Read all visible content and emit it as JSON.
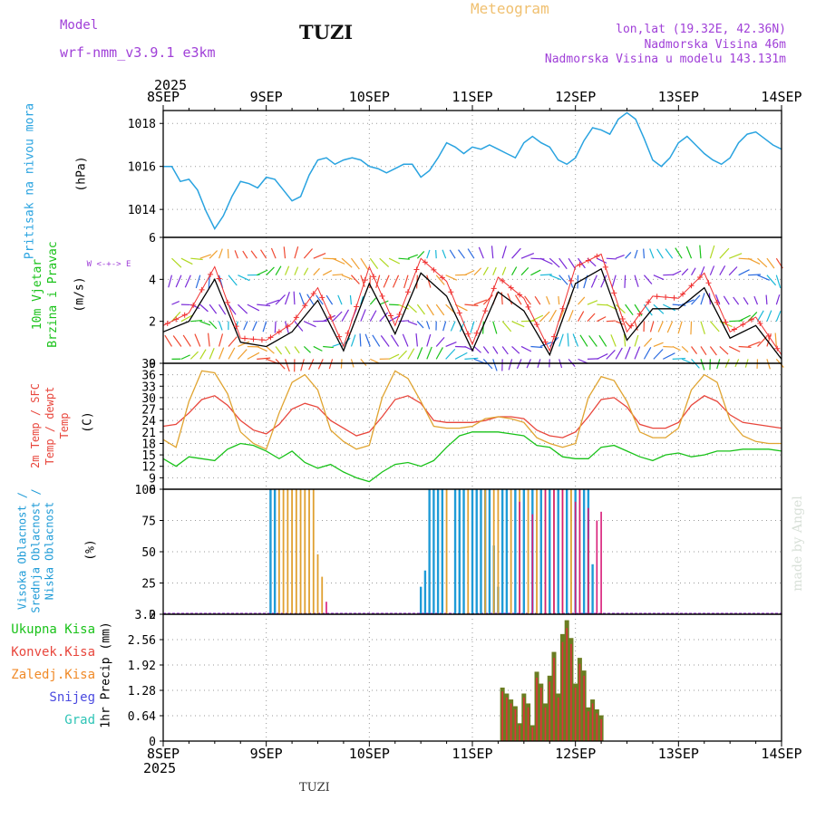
{
  "header": {
    "model_label": "Model",
    "model_name": "wrf-nmm_v3.9.1  e3km",
    "station": "TUZI",
    "title": "Meteogram",
    "coords": "lon,lat (19.32E, 42.36N)",
    "elevation": "Nadmorska Visina 46m",
    "model_elevation": "Nadmorska Visina u modelu 143.131m"
  },
  "footer": {
    "station": "TUZI",
    "credit": "made by Angel"
  },
  "colors": {
    "pressure": "#29a3e0",
    "temp2m": "#e8463c",
    "sfc_temp": "#e0a431",
    "dewpoint": "#19c219",
    "high_cloud": "#1e9bd7",
    "mid_cloud": "#e0a030",
    "low_cloud": "#d81b78",
    "precip_total": "#6b7d22",
    "precip_conv": "#e0313a",
    "wind_speed": "#000000",
    "wind_gust": "#f03030",
    "header_purple": "#a040d8",
    "header_orange": "#f0c070"
  },
  "time_axis": {
    "top_year": "2025",
    "bottom_year": "2025",
    "ticks": [
      "8SEP",
      "9SEP",
      "10SEP",
      "11SEP",
      "12SEP",
      "13SEP",
      "14SEP"
    ],
    "range_hours": [
      0,
      144
    ]
  },
  "chart_data": [
    {
      "type": "line",
      "title": "Pritisak na nivou mora",
      "ylabel": "(hPa)",
      "ylim": [
        1012.7,
        1018.6
      ],
      "yticks": [
        "1014",
        "1016",
        "1018"
      ],
      "x": [
        0,
        2,
        4,
        6,
        8,
        10,
        12,
        14,
        16,
        18,
        20,
        22,
        24,
        26,
        28,
        30,
        32,
        34,
        36,
        38,
        40,
        42,
        44,
        46,
        48,
        50,
        52,
        54,
        56,
        58,
        60,
        62,
        64,
        66,
        68,
        70,
        72,
        74,
        76,
        78,
        80,
        82,
        84,
        86,
        88,
        90,
        92,
        94,
        96,
        98,
        100,
        102,
        104,
        106,
        108,
        110,
        112,
        114,
        116,
        118,
        120,
        122,
        124,
        126,
        128,
        130,
        132,
        134,
        136,
        138,
        140,
        142,
        144
      ],
      "series": [
        {
          "name": "MSLP",
          "values": [
            1016.0,
            1016.0,
            1015.3,
            1015.4,
            1014.9,
            1013.9,
            1013.1,
            1013.7,
            1014.6,
            1015.3,
            1015.2,
            1015.0,
            1015.5,
            1015.4,
            1014.9,
            1014.4,
            1014.6,
            1015.6,
            1016.3,
            1016.4,
            1016.1,
            1016.3,
            1016.4,
            1016.3,
            1016.0,
            1015.9,
            1015.7,
            1015.9,
            1016.1,
            1016.1,
            1015.5,
            1015.8,
            1016.4,
            1017.1,
            1016.9,
            1016.6,
            1016.9,
            1016.8,
            1017.0,
            1016.8,
            1016.6,
            1016.4,
            1017.1,
            1017.4,
            1017.1,
            1016.9,
            1016.3,
            1016.1,
            1016.4,
            1017.2,
            1017.8,
            1017.7,
            1017.5,
            1018.2,
            1018.5,
            1018.2,
            1017.3,
            1016.3,
            1016.0,
            1016.4,
            1017.1,
            1017.4,
            1017.0,
            1016.6,
            1016.3,
            1016.1,
            1016.4,
            1017.1,
            1017.5,
            1017.6,
            1017.3,
            1017.0,
            1016.8
          ]
        }
      ]
    },
    {
      "type": "line",
      "title": "10m Vjetar Brzina i Pravac",
      "ylabel": "(m/s)",
      "ylim": [
        0,
        6
      ],
      "yticks": [
        "0",
        "2",
        "4",
        "6"
      ],
      "compass": "W <-+-> E",
      "x": [
        0,
        6,
        12,
        18,
        24,
        30,
        36,
        42,
        48,
        54,
        60,
        66,
        72,
        78,
        84,
        90,
        96,
        102,
        108,
        114,
        120,
        126,
        132,
        138,
        144
      ],
      "series": [
        {
          "name": "Wind speed",
          "values": [
            1.5,
            2.0,
            4.0,
            1.0,
            0.8,
            1.5,
            3.0,
            0.6,
            3.8,
            1.4,
            4.3,
            3.2,
            0.6,
            3.4,
            2.5,
            0.4,
            3.8,
            4.5,
            1.1,
            2.6,
            2.6,
            3.6,
            1.2,
            1.8,
            0.2
          ]
        },
        {
          "name": "Gust",
          "values": [
            1.8,
            2.4,
            4.6,
            1.2,
            1.1,
            1.9,
            3.6,
            0.8,
            4.6,
            1.8,
            5.0,
            3.9,
            0.9,
            4.1,
            3.1,
            0.6,
            4.6,
            5.2,
            1.5,
            3.2,
            3.1,
            4.3,
            1.5,
            2.2,
            0.4
          ]
        }
      ]
    },
    {
      "type": "line",
      "title": "2m Temp / SFC Temp / dewpt Temp",
      "ylabel": "(C)",
      "ylim": [
        6,
        39
      ],
      "yticks": [
        "6",
        "9",
        "12",
        "15",
        "18",
        "21",
        "24",
        "27",
        "30",
        "33",
        "36",
        "39"
      ],
      "x": [
        0,
        3,
        6,
        9,
        12,
        15,
        18,
        21,
        24,
        27,
        30,
        33,
        36,
        39,
        42,
        45,
        48,
        51,
        54,
        57,
        60,
        63,
        66,
        69,
        72,
        75,
        78,
        81,
        84,
        87,
        90,
        93,
        96,
        99,
        102,
        105,
        108,
        111,
        114,
        117,
        120,
        123,
        126,
        129,
        132,
        135,
        138,
        141,
        144
      ],
      "series": [
        {
          "name": "2m Temp",
          "values": [
            22.5,
            23.0,
            26.0,
            29.5,
            30.5,
            28.0,
            24.0,
            21.5,
            20.5,
            23.0,
            27.0,
            28.5,
            27.5,
            24.0,
            22.0,
            20.0,
            21.0,
            25.0,
            29.5,
            30.5,
            28.5,
            24.0,
            23.5,
            23.5,
            23.5,
            24.0,
            25.0,
            25.0,
            24.5,
            21.5,
            20.0,
            19.5,
            21.0,
            25.0,
            29.5,
            30.0,
            27.5,
            23.0,
            22.0,
            22.0,
            23.5,
            28.0,
            30.5,
            29.0,
            25.5,
            23.5,
            23.0,
            22.5,
            22.0
          ]
        },
        {
          "name": "SFC Temp",
          "values": [
            19.0,
            17.0,
            29.0,
            37.0,
            36.5,
            31.0,
            21.0,
            18.0,
            16.5,
            26.0,
            34.0,
            36.0,
            32.0,
            21.5,
            18.5,
            16.5,
            17.5,
            30.0,
            37.0,
            35.0,
            29.0,
            22.5,
            22.0,
            22.0,
            22.5,
            24.5,
            25.0,
            24.5,
            23.5,
            19.5,
            18.0,
            17.0,
            18.0,
            30.0,
            35.5,
            34.5,
            29.0,
            21.0,
            19.5,
            19.5,
            22.0,
            32.0,
            36.0,
            34.0,
            24.0,
            20.0,
            18.5,
            18.0,
            18.0
          ]
        },
        {
          "name": "dewpt Temp",
          "values": [
            14.0,
            12.0,
            14.5,
            14.0,
            13.5,
            16.5,
            18.0,
            17.5,
            16.0,
            14.0,
            16.0,
            13.0,
            11.5,
            12.5,
            10.5,
            9.0,
            8.0,
            10.5,
            12.5,
            13.0,
            12.0,
            13.5,
            17.0,
            20.0,
            21.0,
            21.0,
            21.0,
            20.5,
            20.0,
            17.5,
            17.0,
            14.5,
            14.0,
            14.0,
            17.0,
            17.5,
            16.0,
            14.5,
            13.5,
            15.0,
            15.5,
            14.5,
            15.0,
            16.0,
            16.0,
            16.5,
            16.5,
            16.5,
            16.0
          ]
        }
      ]
    },
    {
      "type": "bar",
      "title": "Visoka Oblacnost / Srednja Oblacnost / Niska Oblacnost",
      "ylabel": "(%)",
      "ylim": [
        0,
        100
      ],
      "yticks": [
        "0",
        "25",
        "50",
        "75",
        "100"
      ],
      "series": [
        {
          "name": "Visoka Oblacnost",
          "x": [
            25,
            26,
            60,
            61,
            62,
            63,
            64,
            65,
            68,
            69,
            70,
            72,
            73,
            74,
            75,
            76,
            77,
            78,
            79,
            80,
            82,
            84,
            86,
            88,
            90,
            92,
            94,
            96,
            98,
            99,
            100
          ],
          "values": [
            100,
            100,
            22,
            35,
            100,
            100,
            100,
            100,
            100,
            100,
            100,
            100,
            100,
            100,
            100,
            100,
            55,
            22,
            100,
            100,
            100,
            100,
            100,
            100,
            100,
            100,
            100,
            100,
            100,
            100,
            40
          ]
        },
        {
          "name": "Srednja Oblacnost",
          "x": [
            27,
            28,
            29,
            30,
            31,
            32,
            33,
            34,
            35,
            36,
            37,
            66,
            71,
            75,
            77,
            78,
            81,
            83,
            85,
            87,
            89,
            91,
            93,
            95,
            97,
            99
          ],
          "values": [
            100,
            100,
            100,
            100,
            100,
            100,
            100,
            100,
            100,
            48,
            30,
            100,
            100,
            100,
            100,
            100,
            100,
            100,
            100,
            100,
            100,
            100,
            100,
            100,
            100,
            60
          ]
        },
        {
          "name": "Niska Oblacnost",
          "x": [
            38,
            83,
            86,
            89,
            91,
            93,
            96,
            97,
            99,
            101,
            102
          ],
          "values": [
            10,
            90,
            80,
            100,
            100,
            100,
            90,
            100,
            85,
            75,
            82
          ]
        }
      ]
    },
    {
      "type": "bar",
      "title": "1hr Precip",
      "ylabel": "1hr Precip (mm)",
      "ylim": [
        0,
        3.2
      ],
      "yticks": [
        "0",
        "0.64",
        "1.28",
        "1.92",
        "2.56",
        "3.2"
      ],
      "legend": [
        "Ukupna Kisa",
        "Konvek.Kisa",
        "Zaledj.Kisa",
        "Snijeg",
        "Grad"
      ],
      "x": [
        78,
        79,
        80,
        81,
        82,
        83,
        84,
        85,
        86,
        87,
        88,
        89,
        90,
        91,
        92,
        93,
        94,
        95,
        96,
        97,
        98,
        99,
        100,
        101,
        102
      ],
      "series": [
        {
          "name": "Ukupna Kisa",
          "values": [
            0.0,
            1.35,
            1.2,
            1.05,
            0.88,
            0.45,
            1.2,
            0.95,
            0.4,
            1.75,
            1.45,
            0.95,
            1.65,
            2.25,
            1.2,
            2.7,
            3.05,
            2.6,
            1.45,
            2.1,
            1.78,
            0.85,
            1.05,
            0.8,
            0.65
          ]
        },
        {
          "name": "Konvek.Kisa",
          "values": [
            0.0,
            1.25,
            1.1,
            0.95,
            0.8,
            0.4,
            1.1,
            0.85,
            0.35,
            1.6,
            1.35,
            0.85,
            1.5,
            2.1,
            1.1,
            2.5,
            2.85,
            2.45,
            1.35,
            1.95,
            1.65,
            0.75,
            0.95,
            0.7,
            0.55
          ]
        }
      ]
    }
  ]
}
